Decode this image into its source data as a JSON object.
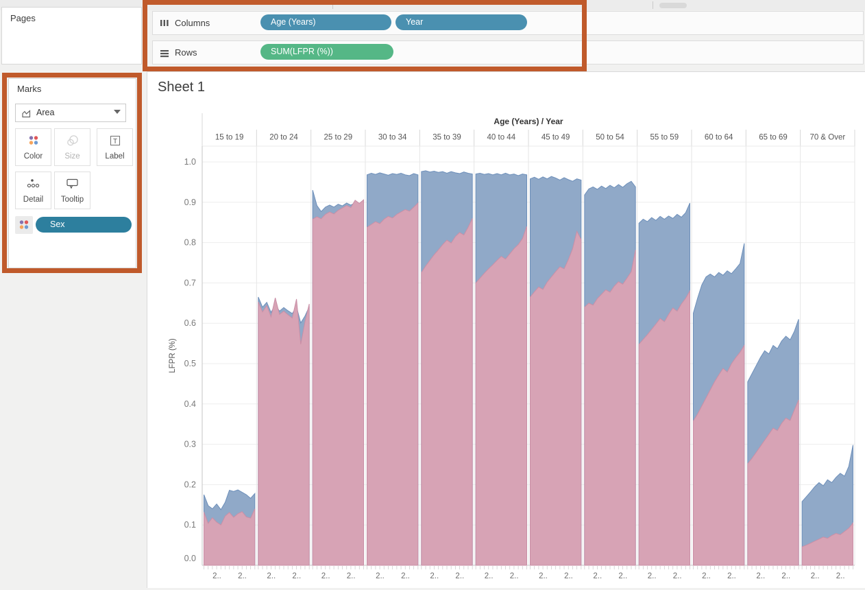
{
  "app": {
    "highlight_color": "#c05a2b"
  },
  "shelves": {
    "pages": {
      "label": "Pages"
    },
    "columns": {
      "label": "Columns",
      "pills": [
        {
          "label": "Age (Years)",
          "color": "#4a90b0"
        },
        {
          "label": "Year",
          "color": "#4a90b0"
        }
      ]
    },
    "rows": {
      "label": "Rows",
      "pills": [
        {
          "label": "SUM(LFPR (%))",
          "color": "#55b786"
        }
      ]
    }
  },
  "marks": {
    "title": "Marks",
    "mark_type": "Area",
    "buttons": [
      {
        "label": "Color",
        "icon": "color-dots-icon",
        "enabled": true
      },
      {
        "label": "Size",
        "icon": "size-circles-icon",
        "enabled": false
      },
      {
        "label": "Label",
        "icon": "label-t-icon",
        "enabled": true
      },
      {
        "label": "Detail",
        "icon": "detail-dots-icon",
        "enabled": true
      },
      {
        "label": "Tooltip",
        "icon": "tooltip-bubble-icon",
        "enabled": true
      }
    ],
    "pills": [
      {
        "label": "Sex",
        "color": "#2d7f9e",
        "icon": "color-dots-icon"
      }
    ]
  },
  "sheet": {
    "title": "Sheet 1"
  },
  "chart_data": {
    "type": "area",
    "col_header": "Age (Years) / Year",
    "ylabel": "LFPR (%)",
    "ylim": [
      0,
      1.04
    ],
    "yticks": [
      0.0,
      0.1,
      0.2,
      0.3,
      0.4,
      0.5,
      0.6,
      0.7,
      0.8,
      0.9,
      1.0
    ],
    "grid": true,
    "legend": "none (Sex on color: blue / pink)",
    "x_tick_labels": [
      "2..",
      "2.."
    ],
    "colors": {
      "blue_fill": "#90a9c8",
      "blue_edge": "#6d8fba",
      "pink_fill": "#d7a3b5",
      "pink_edge": "#c98fa6"
    },
    "panels": [
      {
        "age_group": "15 to 19",
        "blue": [
          0.175,
          0.148,
          0.14,
          0.152,
          0.138,
          0.156,
          0.186,
          0.183,
          0.187,
          0.181,
          0.175,
          0.166,
          0.178
        ],
        "pink": [
          0.132,
          0.104,
          0.118,
          0.107,
          0.1,
          0.122,
          0.131,
          0.119,
          0.128,
          0.133,
          0.12,
          0.117,
          0.14
        ]
      },
      {
        "age_group": "20 to 24",
        "blue": [
          0.665,
          0.64,
          0.652,
          0.627,
          0.646,
          0.63,
          0.639,
          0.631,
          0.624,
          0.641,
          0.601,
          0.618,
          0.641
        ],
        "pink": [
          0.653,
          0.628,
          0.644,
          0.616,
          0.663,
          0.622,
          0.63,
          0.621,
          0.613,
          0.66,
          0.548,
          0.604,
          0.648
        ]
      },
      {
        "age_group": "25 to 29",
        "blue": [
          0.93,
          0.892,
          0.877,
          0.888,
          0.893,
          0.888,
          0.895,
          0.891,
          0.898,
          0.893,
          0.899,
          0.895,
          0.902
        ],
        "pink": [
          0.858,
          0.864,
          0.859,
          0.87,
          0.876,
          0.871,
          0.88,
          0.886,
          0.892,
          0.887,
          0.905,
          0.897,
          0.906
        ]
      },
      {
        "age_group": "30 to 34",
        "blue": [
          0.968,
          0.972,
          0.969,
          0.973,
          0.97,
          0.967,
          0.971,
          0.969,
          0.972,
          0.968,
          0.966,
          0.971,
          0.968
        ],
        "pink": [
          0.838,
          0.845,
          0.852,
          0.847,
          0.858,
          0.865,
          0.861,
          0.87,
          0.876,
          0.882,
          0.878,
          0.888,
          0.898
        ]
      },
      {
        "age_group": "35 to 39",
        "blue": [
          0.976,
          0.978,
          0.975,
          0.977,
          0.974,
          0.976,
          0.972,
          0.976,
          0.973,
          0.971,
          0.975,
          0.972,
          0.97
        ],
        "pink": [
          0.726,
          0.742,
          0.756,
          0.77,
          0.782,
          0.795,
          0.806,
          0.799,
          0.815,
          0.825,
          0.819,
          0.838,
          0.86
        ]
      },
      {
        "age_group": "40 to 44",
        "blue": [
          0.97,
          0.972,
          0.969,
          0.971,
          0.968,
          0.971,
          0.968,
          0.972,
          0.968,
          0.97,
          0.966,
          0.97,
          0.968
        ],
        "pink": [
          0.7,
          0.712,
          0.724,
          0.735,
          0.745,
          0.756,
          0.766,
          0.759,
          0.772,
          0.785,
          0.795,
          0.81,
          0.84
        ]
      },
      {
        "age_group": "45 to 49",
        "blue": [
          0.958,
          0.962,
          0.957,
          0.963,
          0.958,
          0.964,
          0.96,
          0.955,
          0.961,
          0.956,
          0.952,
          0.958,
          0.955
        ],
        "pink": [
          0.665,
          0.678,
          0.69,
          0.684,
          0.702,
          0.715,
          0.728,
          0.74,
          0.735,
          0.758,
          0.785,
          0.828,
          0.808
        ]
      },
      {
        "age_group": "50 to 54",
        "blue": [
          0.918,
          0.933,
          0.938,
          0.932,
          0.94,
          0.934,
          0.942,
          0.936,
          0.944,
          0.937,
          0.946,
          0.952,
          0.938
        ],
        "pink": [
          0.64,
          0.65,
          0.645,
          0.661,
          0.672,
          0.683,
          0.677,
          0.692,
          0.703,
          0.697,
          0.712,
          0.728,
          0.782
        ]
      },
      {
        "age_group": "55 to 59",
        "blue": [
          0.848,
          0.858,
          0.852,
          0.862,
          0.855,
          0.865,
          0.858,
          0.866,
          0.86,
          0.87,
          0.863,
          0.874,
          0.898
        ],
        "pink": [
          0.548,
          0.56,
          0.572,
          0.585,
          0.598,
          0.612,
          0.604,
          0.622,
          0.638,
          0.63,
          0.648,
          0.662,
          0.68
        ]
      },
      {
        "age_group": "60 to 64",
        "blue": [
          0.625,
          0.662,
          0.695,
          0.715,
          0.722,
          0.715,
          0.726,
          0.719,
          0.73,
          0.723,
          0.735,
          0.748,
          0.798
        ],
        "pink": [
          0.358,
          0.375,
          0.395,
          0.415,
          0.435,
          0.455,
          0.472,
          0.488,
          0.479,
          0.5,
          0.515,
          0.528,
          0.545
        ]
      },
      {
        "age_group": "65 to 69",
        "blue": [
          0.455,
          0.475,
          0.495,
          0.515,
          0.532,
          0.524,
          0.545,
          0.537,
          0.556,
          0.568,
          0.559,
          0.58,
          0.61
        ],
        "pink": [
          0.252,
          0.265,
          0.28,
          0.295,
          0.31,
          0.325,
          0.34,
          0.334,
          0.352,
          0.365,
          0.359,
          0.385,
          0.41
        ]
      },
      {
        "age_group": "70 & Over",
        "blue": [
          0.158,
          0.17,
          0.182,
          0.195,
          0.205,
          0.197,
          0.212,
          0.205,
          0.218,
          0.228,
          0.221,
          0.245,
          0.298
        ],
        "pink": [
          0.046,
          0.05,
          0.055,
          0.06,
          0.065,
          0.07,
          0.067,
          0.074,
          0.079,
          0.076,
          0.084,
          0.092,
          0.105
        ]
      }
    ]
  }
}
